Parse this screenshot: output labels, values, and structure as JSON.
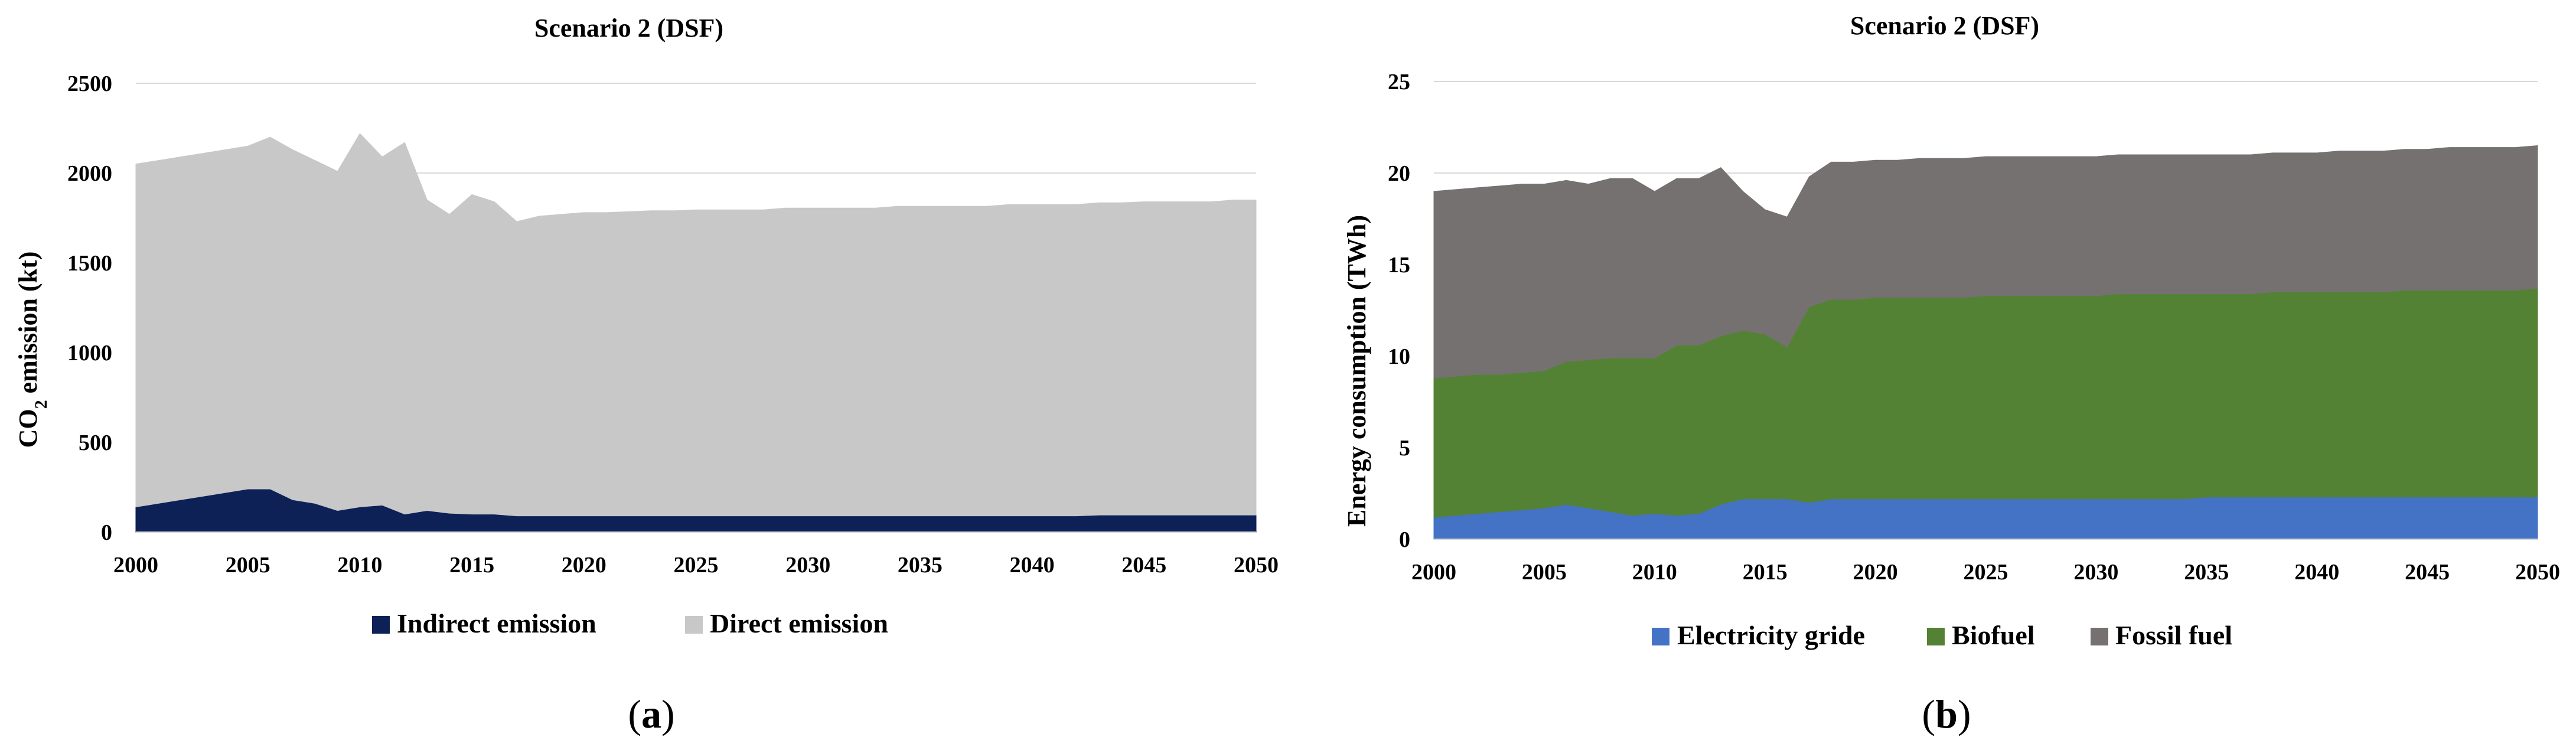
{
  "chart_data": [
    {
      "type": "area",
      "stacked": true,
      "title": "Scenario 2 (DSF)",
      "caption": "a",
      "xlabel": "",
      "ylabel": "CO2 emission (kt)",
      "ylabel_parts": {
        "pre": "CO",
        "sub": "2",
        "post": " emission (kt)"
      },
      "xlim": [
        2000,
        2050
      ],
      "ylim": [
        0,
        2500
      ],
      "xticks": [
        "2000",
        "2005",
        "2010",
        "2015",
        "2020",
        "2025",
        "2030",
        "2035",
        "2040",
        "2045",
        "2050"
      ],
      "yticks": [
        "0",
        "500",
        "1000",
        "1500",
        "2000",
        "2500"
      ],
      "grid": true,
      "legend_position": "bottom",
      "x": [
        2000,
        2001,
        2002,
        2003,
        2004,
        2005,
        2006,
        2007,
        2008,
        2009,
        2010,
        2011,
        2012,
        2013,
        2014,
        2015,
        2016,
        2017,
        2018,
        2019,
        2020,
        2021,
        2022,
        2023,
        2024,
        2025,
        2026,
        2027,
        2028,
        2029,
        2030,
        2031,
        2032,
        2033,
        2034,
        2035,
        2036,
        2037,
        2038,
        2039,
        2040,
        2041,
        2042,
        2043,
        2044,
        2045,
        2046,
        2047,
        2048,
        2049,
        2050
      ],
      "series": [
        {
          "name": "Indirect emission",
          "color": "#0d2157",
          "values": [
            140,
            160,
            180,
            200,
            220,
            240,
            240,
            180,
            160,
            120,
            140,
            150,
            100,
            120,
            105,
            100,
            100,
            90,
            90,
            90,
            90,
            90,
            90,
            90,
            90,
            90,
            90,
            90,
            90,
            90,
            90,
            90,
            90,
            90,
            90,
            90,
            90,
            90,
            90,
            90,
            90,
            90,
            90,
            95,
            95,
            95,
            95,
            95,
            95,
            95,
            95
          ]
        },
        {
          "name": "Direct emission",
          "color": "#c8c8c8",
          "values": [
            1910,
            1910,
            1910,
            1910,
            1910,
            1910,
            1960,
            1950,
            1910,
            1890,
            2080,
            1940,
            2070,
            1730,
            1665,
            1780,
            1740,
            1640,
            1670,
            1680,
            1690,
            1690,
            1695,
            1700,
            1700,
            1705,
            1705,
            1705,
            1705,
            1715,
            1715,
            1715,
            1715,
            1715,
            1725,
            1725,
            1725,
            1725,
            1725,
            1735,
            1735,
            1735,
            1735,
            1740,
            1740,
            1745,
            1745,
            1745,
            1745,
            1755,
            1755
          ]
        }
      ]
    },
    {
      "type": "area",
      "stacked": true,
      "title": "Scenario 2 (DSF)",
      "caption": "b",
      "xlabel": "",
      "ylabel": "Energy consumption (TWh)",
      "xlim": [
        2000,
        2050
      ],
      "ylim": [
        0,
        25
      ],
      "xticks": [
        "2000",
        "2005",
        "2010",
        "2015",
        "2020",
        "2025",
        "2030",
        "2035",
        "2040",
        "2045",
        "2050"
      ],
      "yticks": [
        "0",
        "5",
        "10",
        "15",
        "20",
        "25"
      ],
      "grid": true,
      "legend_position": "bottom",
      "x": [
        2000,
        2001,
        2002,
        2003,
        2004,
        2005,
        2006,
        2007,
        2008,
        2009,
        2010,
        2011,
        2012,
        2013,
        2014,
        2015,
        2016,
        2017,
        2018,
        2019,
        2020,
        2021,
        2022,
        2023,
        2024,
        2025,
        2026,
        2027,
        2028,
        2029,
        2030,
        2031,
        2032,
        2033,
        2034,
        2035,
        2036,
        2037,
        2038,
        2039,
        2040,
        2041,
        2042,
        2043,
        2044,
        2045,
        2046,
        2047,
        2048,
        2049,
        2050
      ],
      "series": [
        {
          "name": "Electricity gride",
          "color": "#4472c4",
          "values": [
            1.2,
            1.3,
            1.4,
            1.5,
            1.6,
            1.7,
            1.9,
            1.7,
            1.5,
            1.3,
            1.4,
            1.3,
            1.4,
            1.9,
            2.2,
            2.2,
            2.2,
            2.0,
            2.2,
            2.2,
            2.2,
            2.2,
            2.2,
            2.2,
            2.2,
            2.2,
            2.2,
            2.2,
            2.2,
            2.2,
            2.2,
            2.2,
            2.2,
            2.2,
            2.2,
            2.3,
            2.3,
            2.3,
            2.3,
            2.3,
            2.3,
            2.3,
            2.3,
            2.3,
            2.3,
            2.3,
            2.3,
            2.3,
            2.3,
            2.3,
            2.3
          ]
        },
        {
          "name": "Biofuel",
          "color": "#548235",
          "values": [
            7.6,
            7.6,
            7.6,
            7.5,
            7.5,
            7.5,
            7.8,
            8.1,
            8.4,
            8.6,
            8.5,
            9.3,
            9.2,
            9.2,
            9.2,
            9.0,
            8.3,
            10.7,
            10.9,
            10.9,
            11.0,
            11.0,
            11.0,
            11.0,
            11.0,
            11.1,
            11.1,
            11.1,
            11.1,
            11.1,
            11.1,
            11.2,
            11.2,
            11.2,
            11.2,
            11.1,
            11.1,
            11.1,
            11.2,
            11.2,
            11.2,
            11.2,
            11.2,
            11.2,
            11.3,
            11.3,
            11.3,
            11.3,
            11.3,
            11.3,
            11.4
          ]
        },
        {
          "name": "Fossil fuel",
          "color": "#767171",
          "values": [
            10.2,
            10.2,
            10.2,
            10.3,
            10.3,
            10.2,
            9.9,
            9.6,
            9.8,
            9.8,
            9.1,
            9.1,
            9.1,
            9.2,
            7.6,
            6.8,
            7.1,
            7.1,
            7.5,
            7.5,
            7.5,
            7.5,
            7.6,
            7.6,
            7.6,
            7.6,
            7.6,
            7.6,
            7.6,
            7.6,
            7.6,
            7.6,
            7.6,
            7.6,
            7.6,
            7.6,
            7.6,
            7.6,
            7.6,
            7.6,
            7.6,
            7.7,
            7.7,
            7.7,
            7.7,
            7.7,
            7.8,
            7.8,
            7.8,
            7.8,
            7.8
          ]
        }
      ]
    }
  ]
}
